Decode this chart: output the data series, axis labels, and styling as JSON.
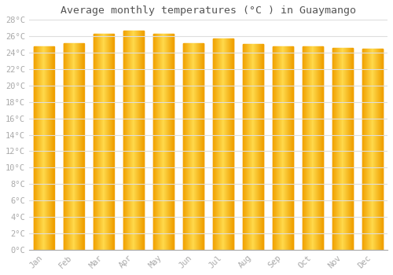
{
  "title": "Average monthly temperatures (°C ) in Guaymango",
  "months": [
    "Jan",
    "Feb",
    "Mar",
    "Apr",
    "May",
    "Jun",
    "Jul",
    "Aug",
    "Sep",
    "Oct",
    "Nov",
    "Dec"
  ],
  "values": [
    24.8,
    25.2,
    26.3,
    26.7,
    26.3,
    25.2,
    25.7,
    25.1,
    24.8,
    24.8,
    24.6,
    24.5
  ],
  "bar_color_edge": "#F0A000",
  "bar_color_center": "#FFD94C",
  "ylim": [
    0,
    28
  ],
  "ytick_step": 2,
  "background_color": "#ffffff",
  "grid_color": "#dddddd",
  "title_fontsize": 9.5,
  "tick_fontsize": 7.5,
  "font_family": "monospace",
  "tick_color": "#aaaaaa",
  "title_color": "#555555"
}
